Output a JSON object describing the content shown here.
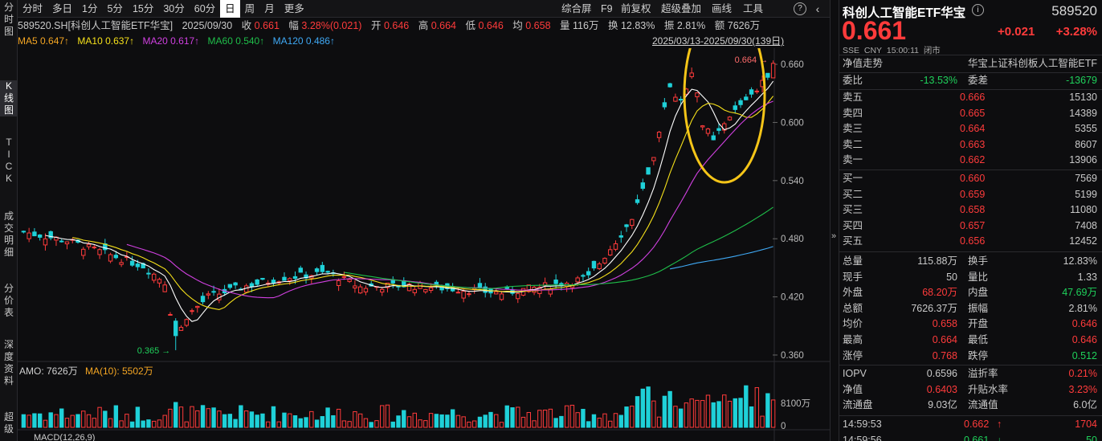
{
  "left_tabs": [
    {
      "label": "分时图",
      "top": 2
    },
    {
      "label": "K线图",
      "top": 100,
      "active": true
    },
    {
      "label": "TICK",
      "top": 170
    },
    {
      "label": "成交明细",
      "top": 262
    },
    {
      "label": "分价表",
      "top": 352
    },
    {
      "label": "深度资料",
      "top": 422
    },
    {
      "label": "超级",
      "top": 512
    }
  ],
  "toolbar": {
    "periods": [
      "分时",
      "多日",
      "1分",
      "5分",
      "15分",
      "30分",
      "60分",
      "日",
      "周",
      "月",
      "更多"
    ],
    "active_period": "日",
    "right_items": [
      "综合屏",
      "F9",
      "前复权",
      "超级叠加",
      "画线",
      "工具"
    ],
    "help_icon": "?",
    "settings_icon": "gear-icon",
    "back_icon": "chevron-left-icon"
  },
  "info": {
    "symbol": "589520.SH[科创人工智能ETF华宝]",
    "date": "2025/09/30",
    "close_label": "收",
    "close": "0.661",
    "range_label": "幅",
    "range": "3.28%(0.021)",
    "open_label": "开",
    "open": "0.646",
    "high_label": "高",
    "high": "0.664",
    "low_label": "低",
    "low": "0.646",
    "avg_label": "均",
    "avg": "0.658",
    "vol_label": "量",
    "vol": "116万",
    "turnover_label": "换",
    "turnover": "12.83%",
    "amp_label": "振",
    "amp": "2.81%",
    "amount_label": "额",
    "amount": "7626万"
  },
  "ma": {
    "ma5": "MA5 0.647↑",
    "ma10": "MA10 0.637↑",
    "ma20": "MA20 0.617↑",
    "ma60": "MA60 0.540↑",
    "ma120": "MA120 0.486↑",
    "date_range": "2025/03/13-2025/09/30(139日)"
  },
  "colors": {
    "up": "#ff3b3b",
    "down": "#1fd1d8",
    "ma5": "#ffffff",
    "ma10": "#f5e01a",
    "ma20": "#d040e0",
    "ma60": "#1fbf4a",
    "ma120": "#3fa9f5",
    "highlight": "#f5c518"
  },
  "chart_data": {
    "type": "candlestick",
    "y_ticks": [
      "0.660",
      "0.600",
      "0.540",
      "0.480",
      "0.420",
      "0.360"
    ],
    "ylim": [
      0.355,
      0.67
    ],
    "max_label": "0.664",
    "min_label": "0.365",
    "volume_axis": [
      "8100万",
      "0"
    ],
    "amo_label": "AMO: 7626万",
    "amo_ma_label": "MA(10): 5502万",
    "macd_label": "MACD(12,26,9)"
  },
  "quote": {
    "name": "科创人工智能ETF华宝",
    "code": "589520",
    "price": "0.661",
    "change": "+0.021",
    "pct": "+3.28%",
    "market": "SSE",
    "currency": "CNY",
    "time": "15:00:11",
    "status": "闭市",
    "nav_title": "净值走势",
    "index_name": "华宝上证科创板人工智能ETF",
    "weibi_label": "委比",
    "weibi": "-13.53%",
    "weicha_label": "委差",
    "weicha": "-13679",
    "asks": [
      {
        "label": "卖五",
        "price": "0.666",
        "vol": "15130"
      },
      {
        "label": "卖四",
        "price": "0.665",
        "vol": "14389"
      },
      {
        "label": "卖三",
        "price": "0.664",
        "vol": "5355"
      },
      {
        "label": "卖二",
        "price": "0.663",
        "vol": "8607"
      },
      {
        "label": "卖一",
        "price": "0.662",
        "vol": "13906"
      }
    ],
    "bids": [
      {
        "label": "买一",
        "price": "0.660",
        "vol": "7569"
      },
      {
        "label": "买二",
        "price": "0.659",
        "vol": "5199"
      },
      {
        "label": "买三",
        "price": "0.658",
        "vol": "11080"
      },
      {
        "label": "买四",
        "price": "0.657",
        "vol": "7408"
      },
      {
        "label": "买五",
        "price": "0.656",
        "vol": "12452"
      }
    ],
    "stats": [
      {
        "l1": "总量",
        "v1": "115.88万",
        "c1": "",
        "l2": "换手",
        "v2": "12.83%",
        "c2": ""
      },
      {
        "l1": "现手",
        "v1": "50",
        "c1": "",
        "l2": "量比",
        "v2": "1.33",
        "c2": ""
      },
      {
        "l1": "外盘",
        "v1": "68.20万",
        "c1": "red",
        "l2": "内盘",
        "v2": "47.69万",
        "c2": "green"
      },
      {
        "l1": "总额",
        "v1": "7626.37万",
        "c1": "",
        "l2": "振幅",
        "v2": "2.81%",
        "c2": ""
      },
      {
        "l1": "均价",
        "v1": "0.658",
        "c1": "red",
        "l2": "开盘",
        "v2": "0.646",
        "c2": "red"
      },
      {
        "l1": "最高",
        "v1": "0.664",
        "c1": "red",
        "l2": "最低",
        "v2": "0.646",
        "c2": "red"
      },
      {
        "l1": "涨停",
        "v1": "0.768",
        "c1": "red",
        "l2": "跌停",
        "v2": "0.512",
        "c2": "green"
      }
    ],
    "stats2": [
      {
        "l1": "IOPV",
        "v1": "0.6596",
        "c1": "",
        "l2": "溢折率",
        "v2": "0.21%",
        "c2": "red"
      },
      {
        "l1": "净值",
        "v1": "0.6403",
        "c1": "red",
        "l2": "升贴水率",
        "v2": "3.23%",
        "c2": "red"
      },
      {
        "l1": "流通盘",
        "v1": "9.03亿",
        "c1": "",
        "l2": "流通值",
        "v2": "6.0亿",
        "c2": ""
      }
    ],
    "ticks": [
      {
        "time": "14:59:53",
        "price": "0.662",
        "arrow": "↑",
        "vol": "1704",
        "color": "red"
      },
      {
        "time": "14:59:56",
        "price": "0.661",
        "arrow": "↓",
        "vol": "50",
        "color": "green"
      }
    ]
  }
}
